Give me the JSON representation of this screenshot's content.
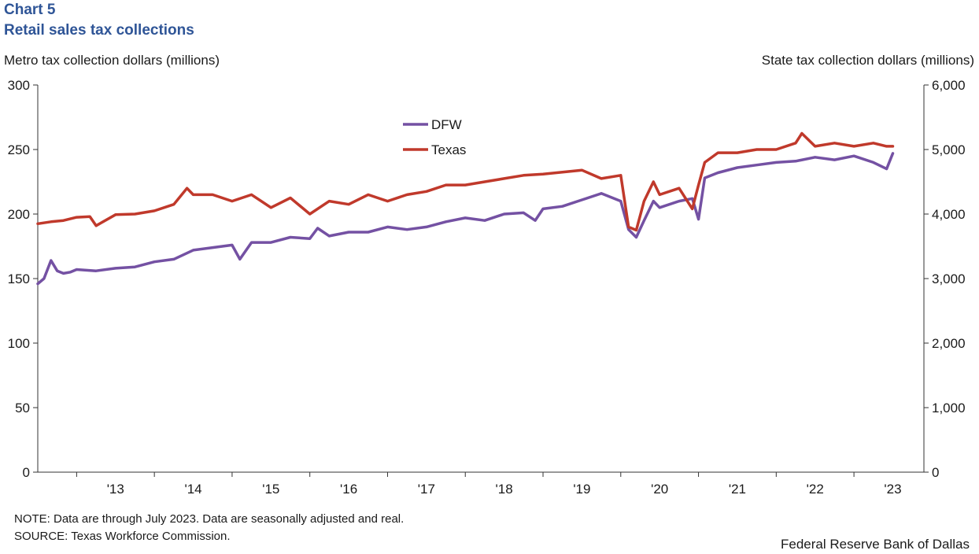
{
  "header": {
    "chart_number": "Chart 5",
    "title": "Retail sales tax collections"
  },
  "footer": {
    "note": "NOTE: Data are through July 2023. Data are seasonally adjusted and real.",
    "source": "SOURCE: Texas Workforce Commission.",
    "credit": "Federal Reserve Bank of Dallas"
  },
  "colors": {
    "dfw": "#7451a3",
    "texas": "#c0392b",
    "axis": "#333333"
  },
  "chart_data": {
    "type": "line",
    "title": "Retail sales tax collections",
    "xlabel": "",
    "ylabel": "Metro tax collection dollars (millions)",
    "ylabel_right": "State tax collection dollars (millions)",
    "xlim": [
      2012.5,
      2023.9
    ],
    "ylim": [
      0,
      300
    ],
    "ylim_right": [
      0,
      6000
    ],
    "y_ticks": [
      "0",
      "50",
      "100",
      "150",
      "200",
      "250",
      "300"
    ],
    "y_ticks_right": [
      "0",
      "1,000",
      "2,000",
      "3,000",
      "4,000",
      "5,000",
      "6,000"
    ],
    "x_ticks": [
      "'13",
      "'14",
      "'15",
      "'16",
      "'17",
      "'18",
      "'19",
      "'20",
      "'21",
      "'22",
      "'23"
    ],
    "legend": [
      "DFW",
      "Texas"
    ],
    "legend_position": "upper-center",
    "series": [
      {
        "name": "DFW",
        "axis": "left",
        "x": [
          2012.5,
          2012.58,
          2012.67,
          2012.75,
          2012.83,
          2012.92,
          2013.0,
          2013.25,
          2013.5,
          2013.75,
          2014.0,
          2014.25,
          2014.5,
          2014.75,
          2015.0,
          2015.1,
          2015.25,
          2015.5,
          2015.75,
          2016.0,
          2016.1,
          2016.25,
          2016.5,
          2016.75,
          2017.0,
          2017.25,
          2017.5,
          2017.75,
          2018.0,
          2018.25,
          2018.5,
          2018.75,
          2018.9,
          2019.0,
          2019.25,
          2019.5,
          2019.75,
          2020.0,
          2020.1,
          2020.2,
          2020.3,
          2020.42,
          2020.5,
          2020.75,
          2020.92,
          2021.0,
          2021.08,
          2021.25,
          2021.5,
          2021.75,
          2022.0,
          2022.25,
          2022.5,
          2022.75,
          2023.0,
          2023.25,
          2023.42,
          2023.5
        ],
        "values": [
          146,
          150,
          164,
          156,
          154,
          155,
          157,
          156,
          158,
          159,
          163,
          165,
          172,
          174,
          176,
          165,
          178,
          178,
          182,
          181,
          189,
          183,
          186,
          186,
          190,
          188,
          190,
          194,
          197,
          195,
          200,
          201,
          195,
          204,
          206,
          211,
          216,
          210,
          188,
          182,
          195,
          210,
          205,
          210,
          212,
          196,
          228,
          232,
          236,
          238,
          240,
          241,
          244,
          242,
          245,
          240,
          235,
          247
        ]
      },
      {
        "name": "Texas",
        "axis": "right",
        "x": [
          2012.5,
          2012.67,
          2012.83,
          2013.0,
          2013.17,
          2013.25,
          2013.5,
          2013.75,
          2014.0,
          2014.25,
          2014.42,
          2014.5,
          2014.75,
          2015.0,
          2015.25,
          2015.5,
          2015.75,
          2016.0,
          2016.25,
          2016.5,
          2016.75,
          2017.0,
          2017.25,
          2017.5,
          2017.75,
          2018.0,
          2018.25,
          2018.5,
          2018.75,
          2019.0,
          2019.25,
          2019.5,
          2019.75,
          2020.0,
          2020.1,
          2020.2,
          2020.3,
          2020.42,
          2020.5,
          2020.75,
          2020.92,
          2021.0,
          2021.08,
          2021.25,
          2021.5,
          2021.75,
          2022.0,
          2022.25,
          2022.33,
          2022.5,
          2022.75,
          2023.0,
          2023.25,
          2023.42,
          2023.5
        ],
        "values": [
          3850,
          3880,
          3900,
          3950,
          3960,
          3820,
          3990,
          4000,
          4050,
          4150,
          4400,
          4300,
          4300,
          4200,
          4300,
          4100,
          4250,
          4000,
          4200,
          4150,
          4300,
          4200,
          4300,
          4350,
          4450,
          4450,
          4500,
          4550,
          4600,
          4620,
          4650,
          4680,
          4550,
          4600,
          3800,
          3750,
          4200,
          4500,
          4300,
          4400,
          4080,
          4450,
          4800,
          4950,
          4950,
          5000,
          5000,
          5100,
          5250,
          5050,
          5100,
          5050,
          5100,
          5050,
          5050
        ]
      }
    ]
  }
}
